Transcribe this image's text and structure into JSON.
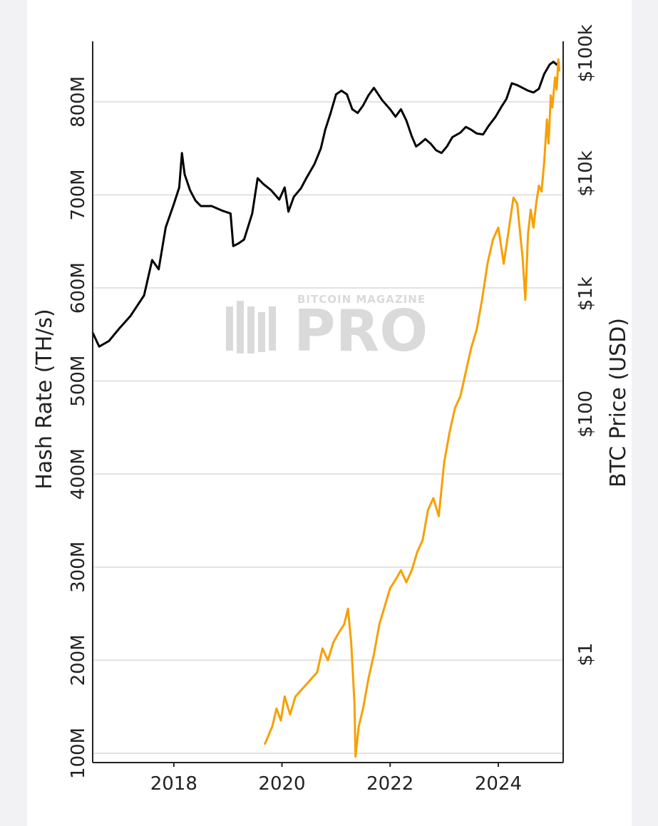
{
  "chart_data": {
    "type": "line",
    "title": "",
    "xlabel": "",
    "x_ticks": [
      "2018",
      "2020",
      "2022",
      "2024"
    ],
    "x_range": [
      2016.5,
      2025.2
    ],
    "left_axis": {
      "label": "Hash Rate (TH/s)",
      "ticks": [
        "100M",
        "200M",
        "300M",
        "400M",
        "500M",
        "600M",
        "700M",
        "800M"
      ],
      "tick_values": [
        100,
        200,
        300,
        400,
        500,
        600,
        700,
        800
      ],
      "range": [
        90,
        865
      ],
      "units": "millions TH/s"
    },
    "right_axis": {
      "label": "BTC Price (USD)",
      "ticks": [
        "$1",
        "$100",
        "$1k",
        "$10k",
        "$100k"
      ],
      "tick_values": [
        0,
        2,
        3,
        4,
        5
      ],
      "scale": "log10",
      "range": [
        -0.9,
        5.1
      ]
    },
    "series": [
      {
        "name": "Hash Rate",
        "axis": "left",
        "color": "#000000",
        "points": [
          [
            2016.5,
            552
          ],
          [
            2016.62,
            537
          ],
          [
            2016.8,
            543
          ],
          [
            2017.0,
            557
          ],
          [
            2017.2,
            570
          ],
          [
            2017.45,
            592
          ],
          [
            2017.6,
            630
          ],
          [
            2017.72,
            620
          ],
          [
            2017.85,
            665
          ],
          [
            2018.0,
            690
          ],
          [
            2018.1,
            708
          ],
          [
            2018.15,
            745
          ],
          [
            2018.2,
            722
          ],
          [
            2018.3,
            705
          ],
          [
            2018.4,
            694
          ],
          [
            2018.5,
            688
          ],
          [
            2018.7,
            688
          ],
          [
            2018.9,
            683
          ],
          [
            2019.05,
            680
          ],
          [
            2019.1,
            645
          ],
          [
            2019.2,
            648
          ],
          [
            2019.3,
            652
          ],
          [
            2019.45,
            680
          ],
          [
            2019.55,
            718
          ],
          [
            2019.65,
            712
          ],
          [
            2019.8,
            705
          ],
          [
            2019.95,
            695
          ],
          [
            2020.05,
            708
          ],
          [
            2020.12,
            682
          ],
          [
            2020.22,
            698
          ],
          [
            2020.35,
            707
          ],
          [
            2020.45,
            718
          ],
          [
            2020.6,
            733
          ],
          [
            2020.72,
            750
          ],
          [
            2020.8,
            770
          ],
          [
            2020.9,
            788
          ],
          [
            2021.0,
            808
          ],
          [
            2021.1,
            812
          ],
          [
            2021.2,
            808
          ],
          [
            2021.3,
            792
          ],
          [
            2021.4,
            788
          ],
          [
            2021.5,
            796
          ],
          [
            2021.6,
            807
          ],
          [
            2021.7,
            815
          ],
          [
            2021.85,
            802
          ],
          [
            2022.0,
            792
          ],
          [
            2022.1,
            784
          ],
          [
            2022.2,
            792
          ],
          [
            2022.3,
            780
          ],
          [
            2022.4,
            763
          ],
          [
            2022.48,
            752
          ],
          [
            2022.55,
            755
          ],
          [
            2022.65,
            760
          ],
          [
            2022.75,
            755
          ],
          [
            2022.85,
            748
          ],
          [
            2022.95,
            745
          ],
          [
            2023.05,
            752
          ],
          [
            2023.15,
            762
          ],
          [
            2023.3,
            767
          ],
          [
            2023.4,
            773
          ],
          [
            2023.5,
            770
          ],
          [
            2023.6,
            766
          ],
          [
            2023.72,
            765
          ],
          [
            2023.82,
            774
          ],
          [
            2023.95,
            784
          ],
          [
            2024.05,
            794
          ],
          [
            2024.15,
            803
          ],
          [
            2024.25,
            820
          ],
          [
            2024.35,
            818
          ],
          [
            2024.45,
            815
          ],
          [
            2024.55,
            812
          ],
          [
            2024.65,
            810
          ],
          [
            2024.75,
            814
          ],
          [
            2024.85,
            830
          ],
          [
            2024.95,
            840
          ],
          [
            2025.02,
            843
          ],
          [
            2025.08,
            840
          ],
          [
            2025.13,
            843
          ]
        ]
      },
      {
        "name": "BTC Price",
        "axis": "right",
        "color": "#f7a000",
        "points": [
          [
            2019.68,
            -0.75
          ],
          [
            2019.82,
            -0.6
          ],
          [
            2019.9,
            -0.45
          ],
          [
            2019.98,
            -0.55
          ],
          [
            2020.05,
            -0.35
          ],
          [
            2020.15,
            -0.5
          ],
          [
            2020.25,
            -0.35
          ],
          [
            2020.35,
            -0.3
          ],
          [
            2020.45,
            -0.25
          ],
          [
            2020.55,
            -0.2
          ],
          [
            2020.65,
            -0.15
          ],
          [
            2020.75,
            0.05
          ],
          [
            2020.85,
            -0.05
          ],
          [
            2020.95,
            0.1
          ],
          [
            2021.05,
            0.18
          ],
          [
            2021.15,
            0.25
          ],
          [
            2021.22,
            0.38
          ],
          [
            2021.28,
            0.1
          ],
          [
            2021.34,
            -0.4
          ],
          [
            2021.36,
            -0.85
          ],
          [
            2021.42,
            -0.6
          ],
          [
            2021.5,
            -0.45
          ],
          [
            2021.6,
            -0.2
          ],
          [
            2021.7,
            0.0
          ],
          [
            2021.8,
            0.25
          ],
          [
            2021.9,
            0.4
          ],
          [
            2022.0,
            0.55
          ],
          [
            2022.1,
            0.62
          ],
          [
            2022.2,
            0.7
          ],
          [
            2022.3,
            0.6
          ],
          [
            2022.4,
            0.7
          ],
          [
            2022.5,
            0.85
          ],
          [
            2022.6,
            0.95
          ],
          [
            2022.7,
            1.2
          ],
          [
            2022.8,
            1.3
          ],
          [
            2022.9,
            1.15
          ],
          [
            2023.0,
            1.6
          ],
          [
            2023.1,
            1.85
          ],
          [
            2023.2,
            2.05
          ],
          [
            2023.3,
            2.15
          ],
          [
            2023.4,
            2.35
          ],
          [
            2023.5,
            2.55
          ],
          [
            2023.6,
            2.7
          ],
          [
            2023.7,
            2.95
          ],
          [
            2023.8,
            3.25
          ],
          [
            2023.9,
            3.45
          ],
          [
            2024.0,
            3.55
          ],
          [
            2024.1,
            3.25
          ],
          [
            2024.2,
            3.55
          ],
          [
            2024.28,
            3.8
          ],
          [
            2024.35,
            3.75
          ],
          [
            2024.45,
            3.3
          ],
          [
            2024.5,
            2.95
          ],
          [
            2024.55,
            3.5
          ],
          [
            2024.6,
            3.7
          ],
          [
            2024.65,
            3.55
          ],
          [
            2024.7,
            3.75
          ],
          [
            2024.75,
            3.9
          ],
          [
            2024.8,
            3.85
          ],
          [
            2024.85,
            4.1
          ],
          [
            2024.9,
            4.45
          ],
          [
            2024.93,
            4.25
          ],
          [
            2024.97,
            4.65
          ],
          [
            2025.0,
            4.55
          ],
          [
            2025.05,
            4.8
          ],
          [
            2025.08,
            4.7
          ],
          [
            2025.11,
            4.95
          ],
          [
            2025.13,
            4.85
          ]
        ]
      }
    ],
    "grid": true
  },
  "watermark": {
    "line1": "BITCOIN MAGAZINE",
    "line2": "PRO"
  }
}
